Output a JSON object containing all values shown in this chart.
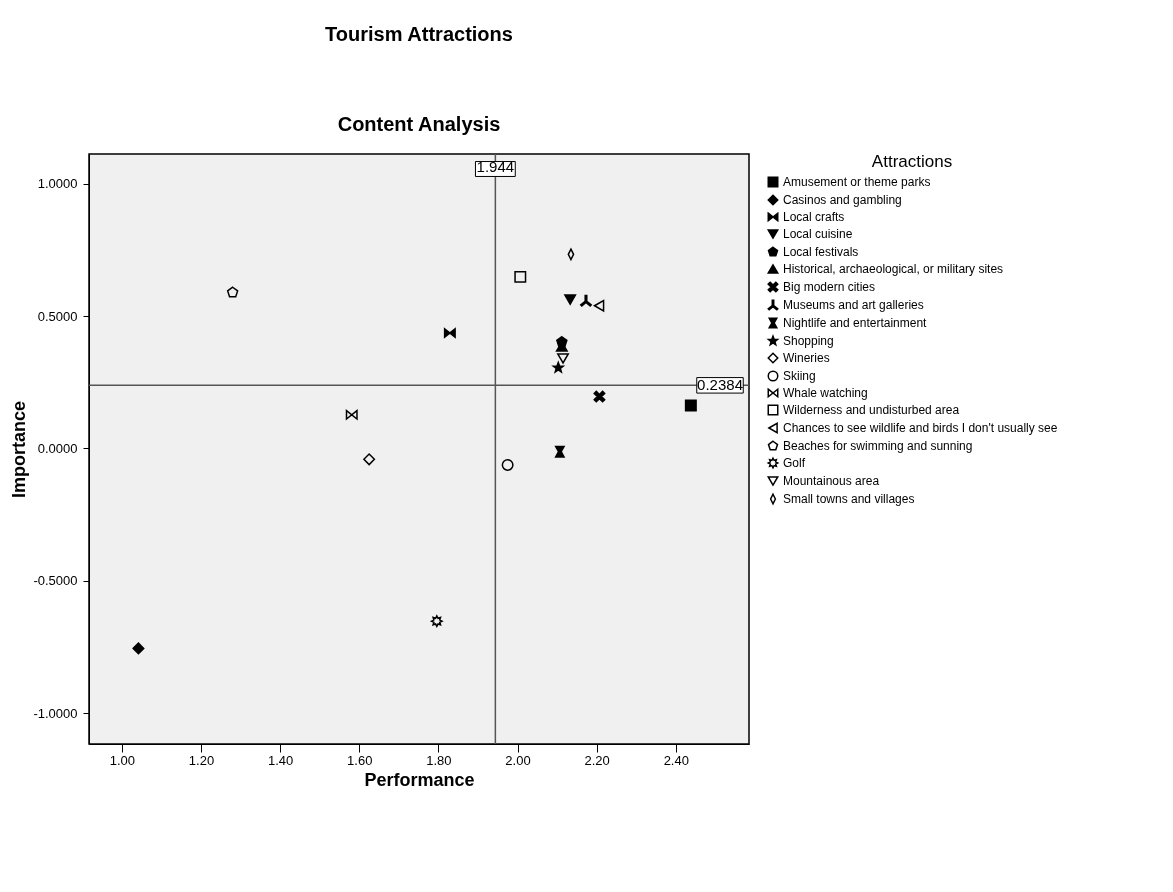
{
  "chart_data": {
    "type": "scatter",
    "title": "Tourism Attractions",
    "subtitle": "Content Analysis",
    "xlabel": "Performance",
    "ylabel": "Importance",
    "legend_title": "Attractions",
    "legend": "right",
    "grid": false,
    "xlim": [
      0.917,
      2.585
    ],
    "ylim": [
      -1.116,
      1.112
    ],
    "xticks": [
      {
        "value": 1.0,
        "label": "1.00"
      },
      {
        "value": 1.2,
        "label": "1.20"
      },
      {
        "value": 1.4,
        "label": "1.40"
      },
      {
        "value": 1.6,
        "label": "1.60"
      },
      {
        "value": 1.8,
        "label": "1.80"
      },
      {
        "value": 2.0,
        "label": "2.00"
      },
      {
        "value": 2.2,
        "label": "2.20"
      },
      {
        "value": 2.4,
        "label": "2.40"
      }
    ],
    "yticks": [
      {
        "value": 1.0,
        "label": "1.0000"
      },
      {
        "value": 0.5,
        "label": "0.5000"
      },
      {
        "value": 0,
        "label": "0.0000"
      },
      {
        "value": -0.5,
        "label": "-0.5000"
      },
      {
        "value": -1.0,
        "label": "-1.0000"
      }
    ],
    "ref_lines": [
      {
        "axis": "x",
        "value": 1.944,
        "label": "1.944",
        "color": "#555555"
      },
      {
        "axis": "y",
        "value": 0.2384,
        "label": "0.2384",
        "color": "#555555"
      }
    ],
    "series": [
      {
        "name": "Amusement or theme parks",
        "color": "#000000",
        "x": [
          2.438
        ],
        "values": [
          0.162
        ]
      },
      {
        "name": "Casinos and gambling",
        "color": "#000000",
        "x": [
          1.042
        ],
        "values": [
          -0.755
        ]
      },
      {
        "name": "Local crafts",
        "color": "#000000",
        "x": [
          1.829
        ],
        "values": [
          0.436
        ]
      },
      {
        "name": "Local cuisine",
        "color": "#000000",
        "x": [
          2.133
        ],
        "values": [
          0.562
        ]
      },
      {
        "name": "Local festivals",
        "color": "#000000",
        "x": [
          2.112
        ],
        "values": [
          0.402
        ]
      },
      {
        "name": "Historical, archaeological, or military sites",
        "color": "#000000",
        "x": [
          2.112
        ],
        "values": [
          0.385
        ]
      },
      {
        "name": "Big modern cities",
        "color": "#000000",
        "x": [
          2.207
        ],
        "values": [
          0.196
        ]
      },
      {
        "name": "Museums and art galleries",
        "color": "#000000",
        "x": [
          2.173
        ],
        "values": [
          0.558
        ]
      },
      {
        "name": "Nightlife and entertainment",
        "color": "#000000",
        "x": [
          2.107
        ],
        "values": [
          -0.012
        ]
      },
      {
        "name": "Shopping",
        "color": "#000000",
        "x": [
          2.103
        ],
        "values": [
          0.305
        ]
      },
      {
        "name": "Wineries",
        "color": "#000000",
        "x": [
          1.625
        ],
        "values": [
          -0.041
        ]
      },
      {
        "name": "Skiing",
        "color": "#000000",
        "x": [
          1.975
        ],
        "values": [
          -0.062
        ]
      },
      {
        "name": "Whale watching",
        "color": "#000000",
        "x": [
          1.581
        ],
        "values": [
          0.127
        ]
      },
      {
        "name": "Wilderness and undisturbed area",
        "color": "#000000",
        "x": [
          2.007
        ],
        "values": [
          0.648
        ]
      },
      {
        "name": "Chances to see wildlife and birds I don't usually see",
        "color": "#000000",
        "x": [
          2.206
        ],
        "values": [
          0.539
        ]
      },
      {
        "name": "Beaches for swimming and sunning",
        "color": "#000000",
        "x": [
          1.28
        ],
        "values": [
          0.589
        ]
      },
      {
        "name": "Golf",
        "color": "#000000",
        "x": [
          1.796
        ],
        "values": [
          -0.652
        ]
      },
      {
        "name": "Mountainous area",
        "color": "#000000",
        "x": [
          2.115
        ],
        "values": [
          0.34
        ]
      },
      {
        "name": "Small towns and villages",
        "color": "#000000",
        "x": [
          2.135
        ],
        "values": [
          0.733
        ]
      }
    ]
  }
}
